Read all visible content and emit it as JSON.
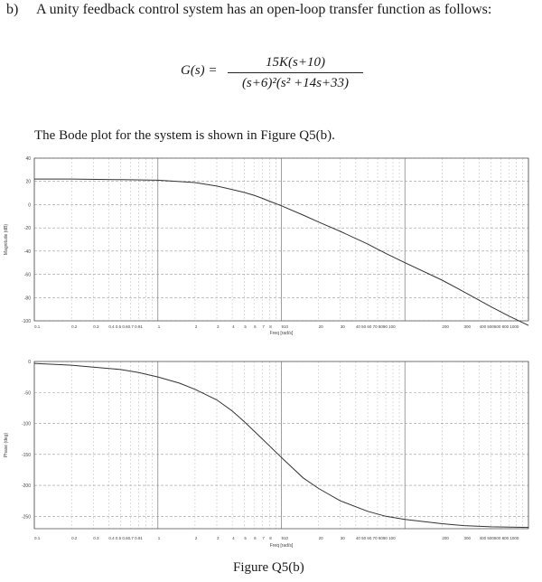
{
  "question": {
    "label": "b)",
    "text": "A unity feedback control system has an open-loop transfer function as follows:"
  },
  "equation": {
    "lhs": "G(s) =",
    "numerator": "15K(s+10)",
    "denominator": "(s+6)²(s² +14s+33)"
  },
  "intro_text": "The Bode plot for the system is shown in Figure Q5(b).",
  "figure_caption": "Figure Q5(b)",
  "chart_data": [
    {
      "type": "line",
      "xscale": "log",
      "xlim": [
        0.1,
        1000
      ],
      "ylim": [
        -100,
        40
      ],
      "ylabel": "Magnitude (dB)",
      "xlabel": "Freq [rad/s]",
      "yticks": [
        "40",
        "20",
        "0",
        "-20",
        "-40",
        "-60",
        "-80",
        "-100"
      ],
      "yvals": [
        40,
        20,
        0,
        -20,
        -40,
        -60,
        -80,
        -100
      ],
      "xticks": [
        {
          "v": 0.1,
          "t": "0.1"
        },
        {
          "v": 0.2,
          "t": "0.2"
        },
        {
          "v": 0.3,
          "t": "0.3"
        },
        {
          "v": 0.4,
          "t": "0.4 0.5 0.60.7 0.91"
        },
        {
          "v": 1,
          "t": "1"
        },
        {
          "v": 2,
          "t": "2"
        },
        {
          "v": 3,
          "t": "3"
        },
        {
          "v": 4,
          "t": "4"
        },
        {
          "v": 5,
          "t": "5"
        },
        {
          "v": 6,
          "t": "6"
        },
        {
          "v": 7,
          "t": "7"
        },
        {
          "v": 8,
          "t": "8"
        },
        {
          "v": 10,
          "t": "910"
        },
        {
          "v": 20,
          "t": "20"
        },
        {
          "v": 30,
          "t": "30"
        },
        {
          "v": 40,
          "t": "40 50 60 70 8090 100"
        },
        {
          "v": 200,
          "t": "200"
        },
        {
          "v": 300,
          "t": "300"
        },
        {
          "v": 400,
          "t": "400 500600 800 1000"
        }
      ],
      "grid": true,
      "series": [
        {
          "x": [
            0.1,
            0.2,
            0.5,
            1,
            2,
            3,
            4,
            5,
            6,
            7,
            8,
            10,
            15,
            20,
            30,
            50,
            70,
            100,
            200,
            300,
            500,
            700,
            1000
          ],
          "y": [
            22,
            22,
            21.5,
            21,
            19,
            16,
            13,
            10.5,
            8,
            5.5,
            3,
            -1,
            -9,
            -15,
            -23,
            -34,
            -42,
            -50,
            -65,
            -75,
            -88,
            -96,
            -104
          ]
        }
      ]
    },
    {
      "type": "line",
      "xscale": "log",
      "xlim": [
        0.1,
        1000
      ],
      "ylim": [
        -270,
        0
      ],
      "ylabel": "Phase (deg)",
      "xlabel": "Freq [rad/s]",
      "yticks": [
        "0",
        "-50",
        "-100",
        "-150",
        "-200",
        "-250"
      ],
      "yvals": [
        0,
        -50,
        -100,
        -150,
        -200,
        -250
      ],
      "xticks": [
        {
          "v": 0.1,
          "t": "0.1"
        },
        {
          "v": 0.2,
          "t": "0.2"
        },
        {
          "v": 0.3,
          "t": "0.3"
        },
        {
          "v": 0.4,
          "t": "0.4 0.5 0.60.7 0.91"
        },
        {
          "v": 1,
          "t": "1"
        },
        {
          "v": 2,
          "t": "2"
        },
        {
          "v": 3,
          "t": "3"
        },
        {
          "v": 4,
          "t": "4"
        },
        {
          "v": 5,
          "t": "5"
        },
        {
          "v": 6,
          "t": "6"
        },
        {
          "v": 7,
          "t": "7"
        },
        {
          "v": 8,
          "t": "8"
        },
        {
          "v": 10,
          "t": "910"
        },
        {
          "v": 20,
          "t": "20"
        },
        {
          "v": 30,
          "t": "30"
        },
        {
          "v": 40,
          "t": "40 50 60 70 8090 100"
        },
        {
          "v": 200,
          "t": "200"
        },
        {
          "v": 300,
          "t": "300"
        },
        {
          "v": 400,
          "t": "400 500600 800 1000"
        }
      ],
      "grid": true,
      "series": [
        {
          "x": [
            0.1,
            0.2,
            0.3,
            0.5,
            0.7,
            1,
            1.5,
            2,
            3,
            4,
            5,
            7,
            10,
            15,
            20,
            30,
            50,
            70,
            100,
            200,
            300,
            500,
            1000
          ],
          "y": [
            -3,
            -6,
            -9,
            -13,
            -18,
            -25,
            -35,
            -45,
            -62,
            -80,
            -97,
            -125,
            -155,
            -188,
            -205,
            -225,
            -242,
            -250,
            -255,
            -262,
            -265,
            -267,
            -268
          ]
        }
      ]
    }
  ]
}
